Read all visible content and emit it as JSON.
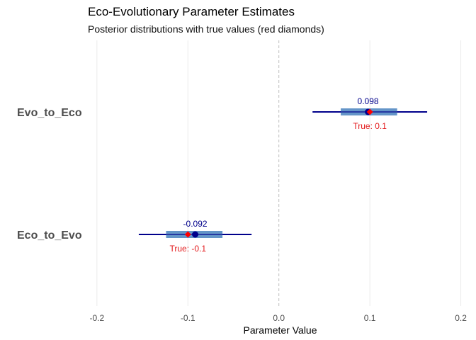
{
  "chart_data": {
    "type": "interval",
    "title": "Eco-Evolutionary Parameter Estimates",
    "subtitle": "Posterior distributions with true values (red diamonds)",
    "xlabel": "Parameter Value",
    "ylabel": "",
    "xlim": [
      -0.21,
      0.205
    ],
    "xticks": [
      -0.2,
      -0.1,
      0.0,
      0.1,
      0.2
    ],
    "xtick_labels": [
      "-0.2",
      "-0.1",
      "0.0",
      "0.1",
      "0.2"
    ],
    "grid": true,
    "parameters": [
      {
        "name": "Evo_to_Eco",
        "estimate": 0.098,
        "estimate_label": "0.098",
        "inner_interval": [
          0.068,
          0.13
        ],
        "outer_interval": [
          0.037,
          0.163
        ],
        "true_value": 0.1,
        "true_label": "True: 0.1"
      },
      {
        "name": "Eco_to_Evo",
        "estimate": -0.092,
        "estimate_label": "-0.092",
        "inner_interval": [
          -0.124,
          -0.062
        ],
        "outer_interval": [
          -0.154,
          -0.03
        ],
        "true_value": -0.1,
        "true_label": "True: -0.1"
      }
    ],
    "colors": {
      "estimate": "#00008b",
      "inner_interval": "#6495c8",
      "outer_interval": "#00008b",
      "true_value": "#ff0000",
      "true_label": "#e31a1c",
      "estimate_label": "#00008b",
      "grid": "#ebebeb",
      "zero_line": "#bebebe",
      "category_label": "#4d4d4d",
      "tick_label": "#4d4d4d"
    }
  }
}
